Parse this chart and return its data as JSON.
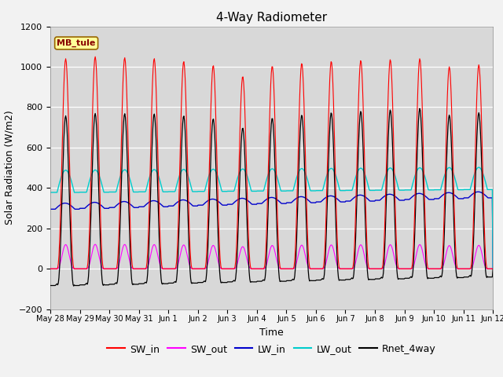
{
  "title": "4-Way Radiometer",
  "xlabel": "Time",
  "ylabel": "Solar Radiation (W/m2)",
  "ylim": [
    -200,
    1200
  ],
  "station_label": "MB_tule",
  "x_tick_labels": [
    "May 28",
    "May 29",
    "May 30",
    "May 31",
    "Jun 1",
    "Jun 2",
    "Jun 3",
    "Jun 4",
    "Jun 5",
    "Jun 6",
    "Jun 7",
    "Jun 8",
    "Jun 9",
    "Jun 10",
    "Jun 11",
    "Jun 12"
  ],
  "num_days": 15,
  "sw_in_peaks": [
    1040,
    1050,
    1045,
    1040,
    1025,
    1005,
    950,
    1000,
    1015,
    1025,
    1030,
    1035,
    1040,
    1000,
    1010
  ],
  "colors": {
    "SW_in": "#ff0000",
    "SW_out": "#ff00ff",
    "LW_in": "#0000cc",
    "LW_out": "#00cccc",
    "Rnet_4way": "#000000",
    "background": "#d8d8d8",
    "station_box_face": "#ffff99",
    "station_box_edge": "#996600"
  },
  "grid_color": "#ffffff",
  "title_fontsize": 11,
  "label_fontsize": 9,
  "tick_fontsize": 8,
  "legend_fontsize": 9
}
